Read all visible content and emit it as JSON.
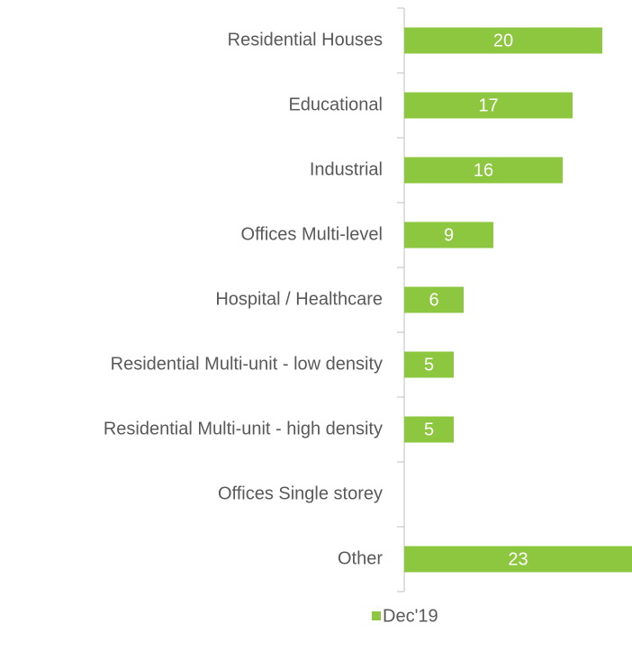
{
  "chart_data": {
    "type": "bar",
    "orientation": "horizontal",
    "categories": [
      "Residential Houses",
      "Educational",
      "Industrial",
      "Offices Multi-level",
      "Hospital / Healthcare",
      "Residential Multi-unit - low density",
      "Residential Multi-unit - high density",
      "Offices Single storey",
      "Other"
    ],
    "series": [
      {
        "name": "Dec'19",
        "color": "#8dc63f",
        "values": [
          20,
          17,
          16,
          9,
          6,
          5,
          5,
          null,
          23
        ]
      }
    ],
    "xlim": [
      0,
      23
    ],
    "legend": "bottom"
  }
}
